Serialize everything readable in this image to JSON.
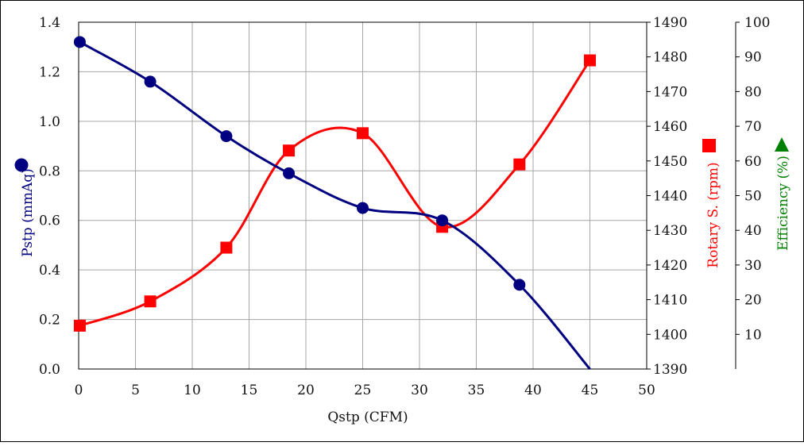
{
  "chart_data": {
    "type": "line",
    "x": {
      "label": "Qstp (CFM)",
      "range": [
        0,
        50
      ],
      "ticks": [
        "0",
        "5",
        "10",
        "15",
        "20",
        "25",
        "30",
        "35",
        "40",
        "45",
        "50"
      ]
    },
    "y_left": {
      "label": "Pstp (mmAq)",
      "range": [
        0.0,
        1.4
      ],
      "ticks": [
        "0.0",
        "0.2",
        "0.4",
        "0.6",
        "0.8",
        "1.0",
        "1.2",
        "1.4"
      ],
      "marker": "circle",
      "color": "#000080"
    },
    "y_right": {
      "label": "Rotary S. (rpm)",
      "range": [
        1390,
        1490
      ],
      "ticks": [
        "1390",
        "1400",
        "1410",
        "1420",
        "1430",
        "1440",
        "1450",
        "1460",
        "1470",
        "1480",
        "1490"
      ],
      "marker": "square",
      "color": "#ff0000"
    },
    "y_right2": {
      "label": "Efficiency (%)",
      "range": [
        0,
        100
      ],
      "ticks": [
        "10",
        "20",
        "30",
        "40",
        "50",
        "60",
        "70",
        "80",
        "90",
        "100"
      ],
      "marker": "triangle",
      "color": "#008000"
    },
    "grid": true,
    "series": [
      {
        "axis": "y_left",
        "color": "#000080",
        "marker": "circle",
        "values": [
          [
            0.1,
            1.32
          ],
          [
            6.3,
            1.16
          ],
          [
            13.0,
            0.94
          ],
          [
            18.5,
            0.79
          ],
          [
            25.0,
            0.65
          ],
          [
            32.0,
            0.6
          ],
          [
            38.8,
            0.34
          ]
        ],
        "end_point": [
          45.0,
          0.0
        ]
      },
      {
        "axis": "y_right",
        "color": "#ff0000",
        "marker": "square",
        "values": [
          [
            0.1,
            1402.5
          ],
          [
            6.3,
            1409.5
          ],
          [
            13.0,
            1425.0
          ],
          [
            18.5,
            1453.0
          ],
          [
            25.0,
            1458.0
          ],
          [
            32.0,
            1431.0
          ],
          [
            38.8,
            1449.0
          ],
          [
            45.0,
            1479.0
          ]
        ]
      }
    ]
  }
}
